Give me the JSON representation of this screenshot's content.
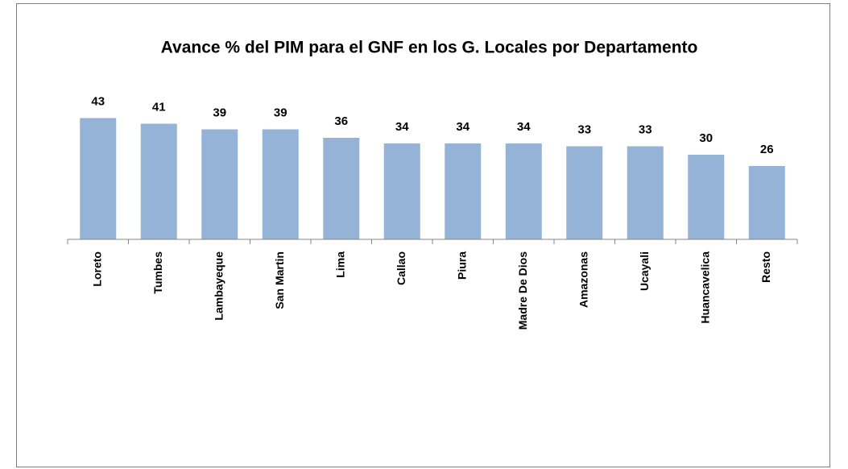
{
  "chart_data": {
    "type": "bar",
    "title": "Avance % del PIM para el GNF en los G. Locales por Departamento",
    "categories": [
      "Loreto",
      "Tumbes",
      "Lambayeque",
      "San Martin",
      "Lima",
      "Callao",
      "Piura",
      "Madre De Dios",
      "Amazonas",
      "Ucayali",
      "Huancavelica",
      "Resto"
    ],
    "values": [
      43,
      41,
      39,
      39,
      36,
      34,
      34,
      34,
      33,
      33,
      30,
      26
    ],
    "color": "#95b3d7",
    "ylim": [
      0,
      50
    ]
  }
}
